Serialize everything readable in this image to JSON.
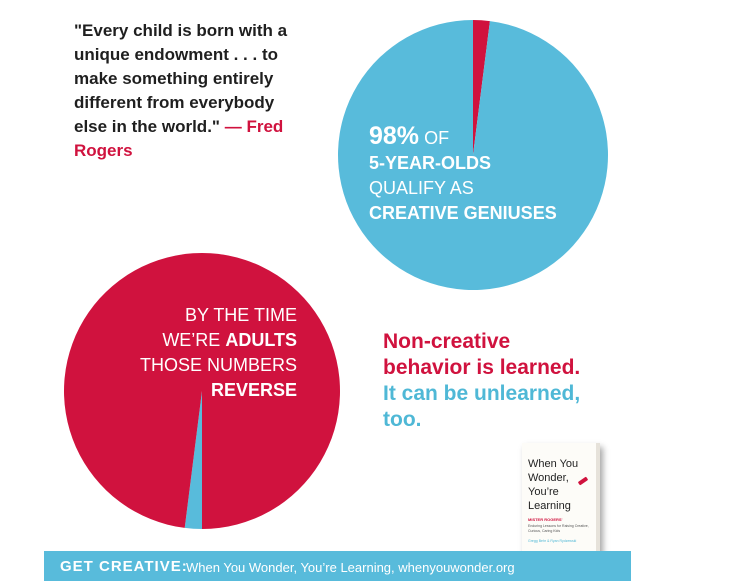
{
  "quote": {
    "text": "\"Every child is born with a unique endowment . . . to make something entirely different from everybody else in the world.\"",
    "attribution": "— Fred Rogers"
  },
  "colors": {
    "red": "#d0123e",
    "blue": "#58bbdb",
    "dark": "#1f1f1f"
  },
  "chart_data": [
    {
      "type": "pie",
      "slices": [
        {
          "label": "creative",
          "value": 98,
          "color": "#58bbdb"
        },
        {
          "label": "non-creative",
          "value": 2,
          "color": "#d0123e"
        }
      ],
      "caption": {
        "pct": "98%",
        "of": "OF",
        "line2": "5-YEAR-OLDS",
        "line3": "QUALIFY AS",
        "line4": "CREATIVE GENIUSES"
      }
    },
    {
      "type": "pie",
      "slices": [
        {
          "label": "non-creative",
          "value": 98,
          "color": "#d0123e"
        },
        {
          "label": "creative",
          "value": 2,
          "color": "#58bbdb"
        }
      ],
      "caption": {
        "line1": "BY THE TIME",
        "line2a": "WE’RE",
        "line2b": "ADULTS",
        "line3": "THOSE NUMBERS",
        "line4": "REVERSE"
      }
    }
  ],
  "lesson": {
    "line1": "Non-creative",
    "line2": "behavior is learned.",
    "line3": "It can be unlearned,",
    "line4": "too."
  },
  "book": {
    "title": "When You Wonder, You’re Learning",
    "subtitle": "MISTER ROGERS'",
    "subtitle2": "Enduring Lessons for Raising Creative, Curious, Caring Kids",
    "authors": "Gregg Behr & Ryan Rydzewski"
  },
  "footer": {
    "label": "GET CREATIVE:",
    "text": "When You Wonder, You’re Learning, whenyouwonder.org"
  }
}
